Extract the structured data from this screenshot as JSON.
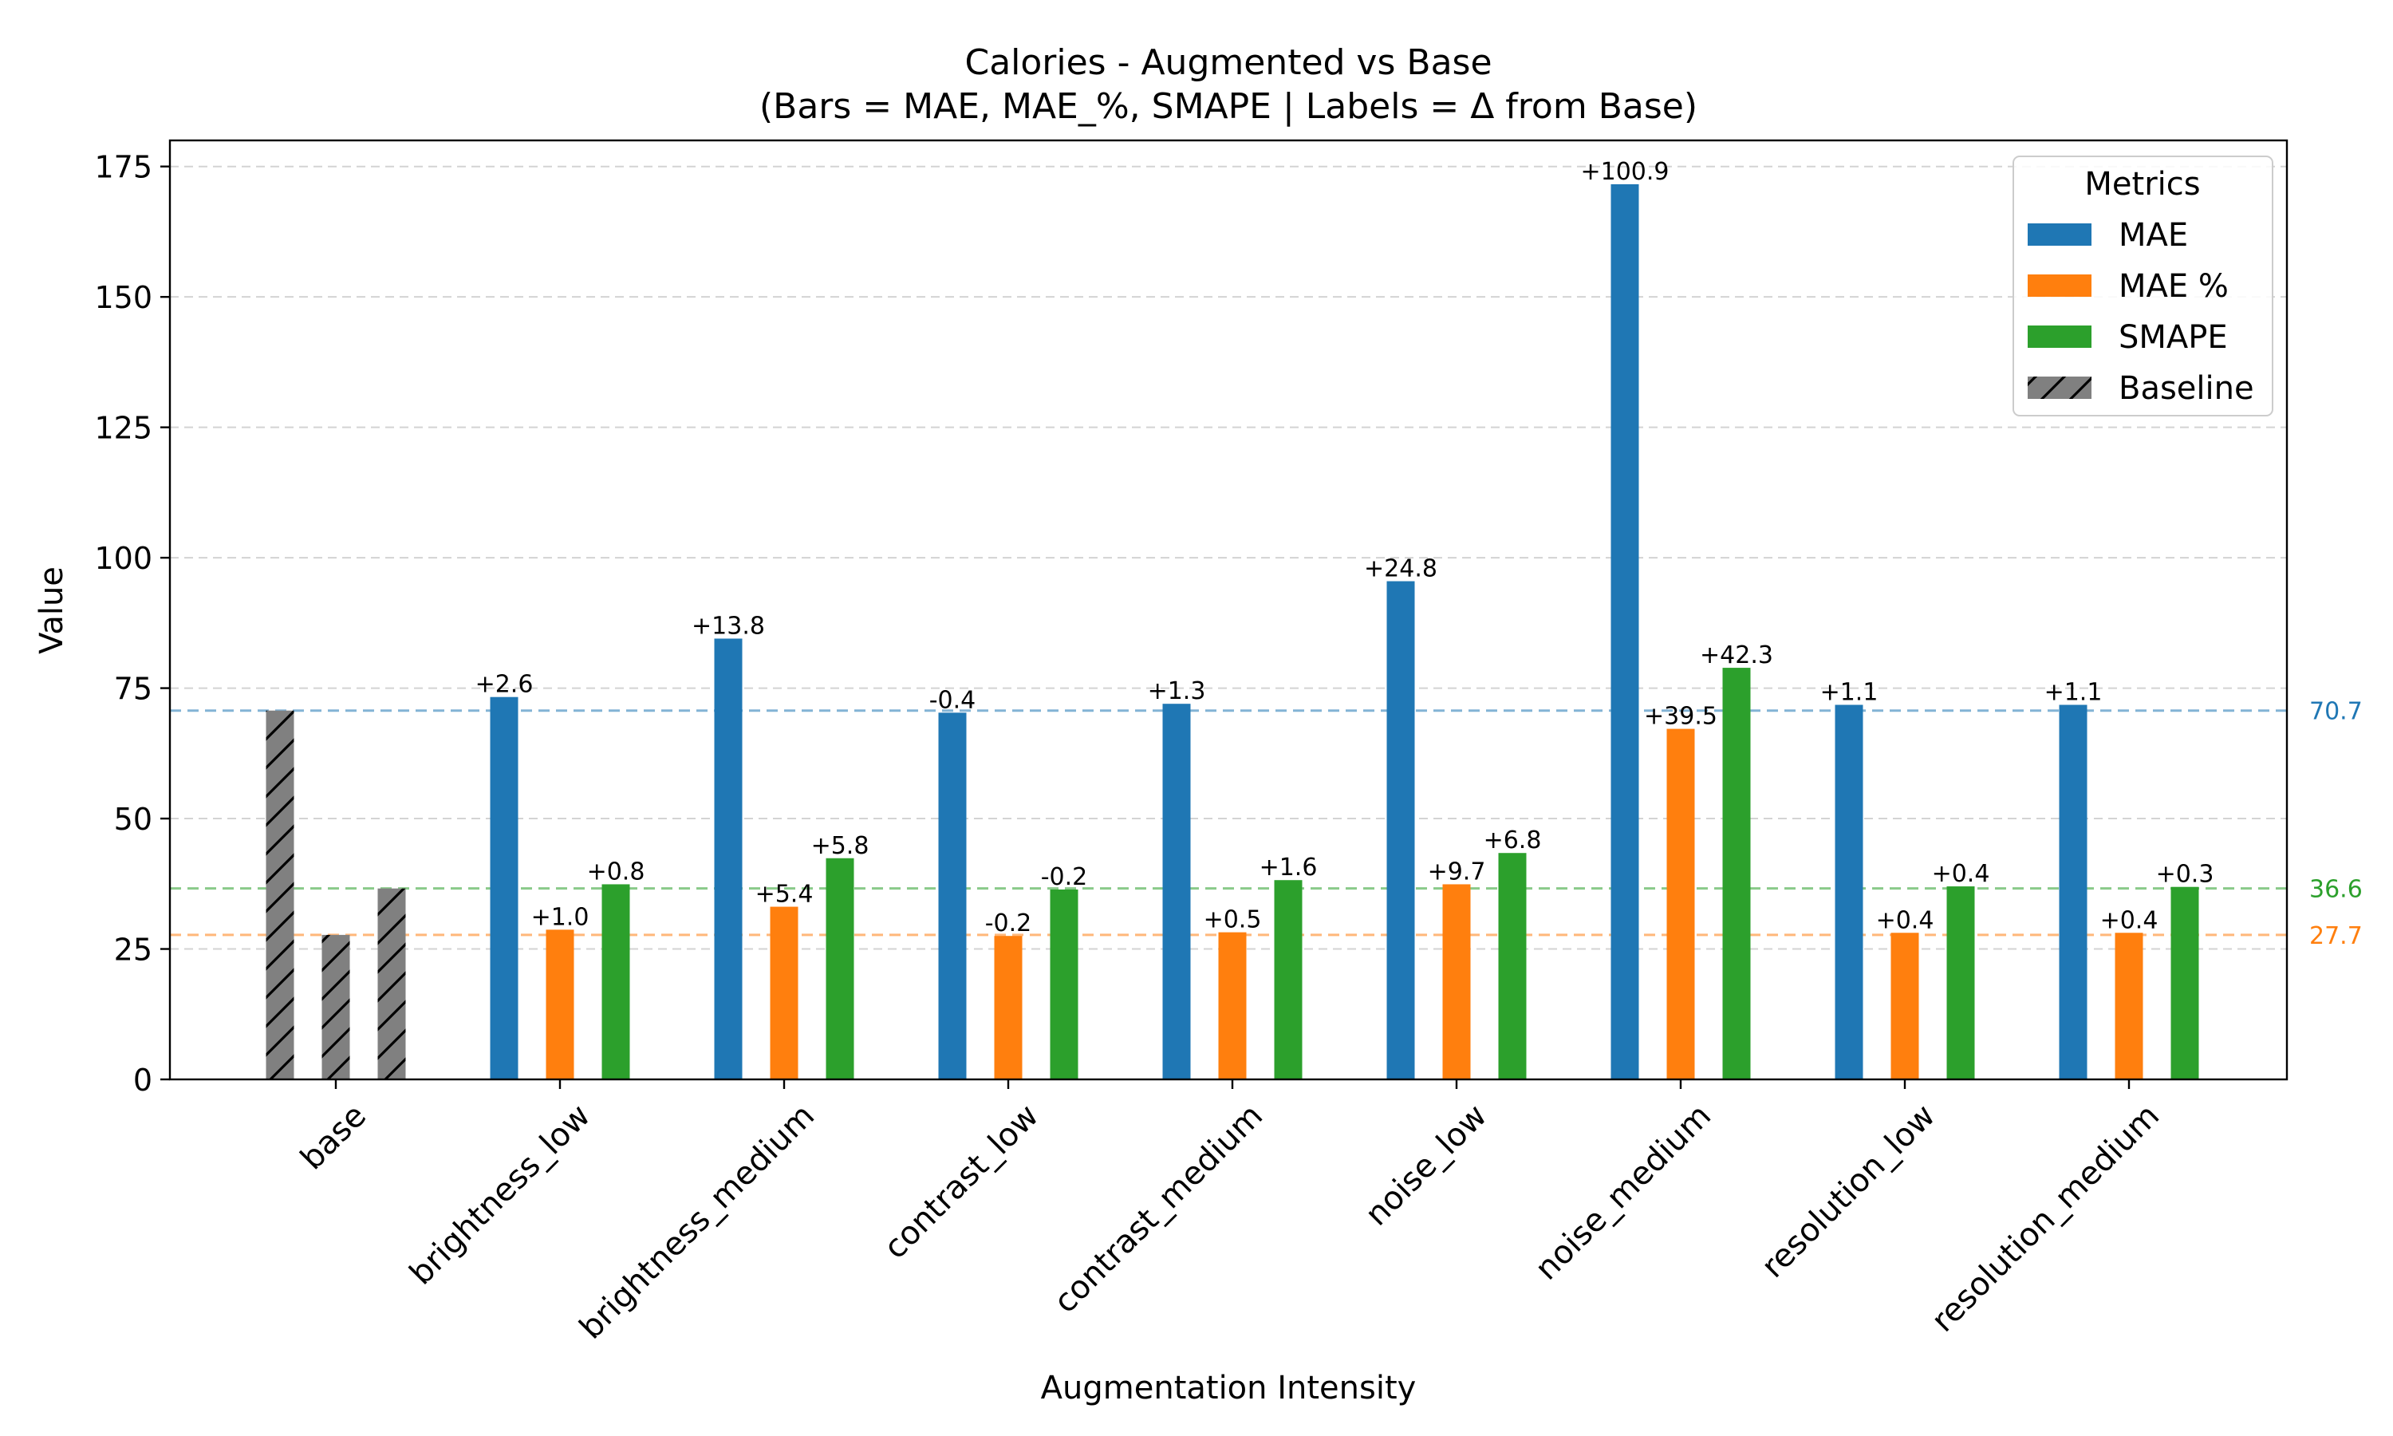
{
  "chart_data": {
    "type": "bar",
    "title": "Calories - Augmented vs Base",
    "subtitle": "(Bars = MAE, MAE_%, SMAPE | Labels = Δ from Base)",
    "xlabel": "Augmentation Intensity",
    "ylabel": "Value",
    "ylim": [
      0,
      180
    ],
    "yticks": [
      "0",
      "25",
      "50",
      "75",
      "100",
      "125",
      "150",
      "175"
    ],
    "grid": "horizontal dashed",
    "legend_title": "Metrics",
    "legend_position": "top-right",
    "categories": [
      "base",
      "brightness_low",
      "brightness_medium",
      "contrast_low",
      "contrast_medium",
      "noise_low",
      "noise_medium",
      "resolution_low",
      "resolution_medium"
    ],
    "series": [
      {
        "name": "MAE",
        "color": "#1f77b4",
        "values": [
          70.7,
          73.3,
          84.5,
          70.3,
          72.0,
          95.5,
          171.6,
          71.8,
          71.8
        ],
        "deltas": [
          "",
          "+2.6",
          "+13.8",
          "-0.4",
          "+1.3",
          "+24.8",
          "+100.9",
          "+1.1",
          "+1.1"
        ]
      },
      {
        "name": "MAE %",
        "color": "#ff7f0e",
        "values": [
          27.7,
          28.7,
          33.1,
          27.5,
          28.2,
          37.4,
          67.2,
          28.1,
          28.1
        ],
        "deltas": [
          "",
          "+1.0",
          "+5.4",
          "-0.2",
          "+0.5",
          "+9.7",
          "+39.5",
          "+0.4",
          "+0.4"
        ]
      },
      {
        "name": "SMAPE",
        "color": "#2ca02c",
        "values": [
          36.6,
          37.4,
          42.4,
          36.4,
          38.2,
          43.4,
          78.9,
          37.0,
          36.9
        ],
        "deltas": [
          "",
          "+0.8",
          "+5.8",
          "-0.2",
          "+1.6",
          "+6.8",
          "+42.3",
          "+0.4",
          "+0.3"
        ]
      }
    ],
    "baseline": {
      "name": "Baseline",
      "color": "#808080",
      "hatch": "diagonal"
    },
    "reference_lines": [
      {
        "label": "70.7",
        "value": 70.7,
        "color": "#1f77b4"
      },
      {
        "label": "36.6",
        "value": 36.6,
        "color": "#2ca02c"
      },
      {
        "label": "27.7",
        "value": 27.7,
        "color": "#ff7f0e"
      }
    ]
  }
}
